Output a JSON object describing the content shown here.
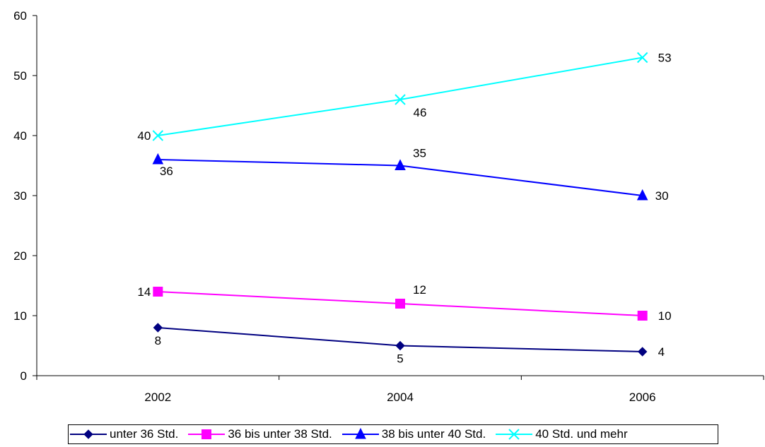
{
  "chart_data": {
    "type": "line",
    "title": "",
    "xlabel": "",
    "ylabel": "",
    "categories": [
      "2002",
      "2004",
      "2006"
    ],
    "ylim": [
      0,
      60
    ],
    "yticks": [
      "0",
      "10",
      "20",
      "30",
      "40",
      "50",
      "60"
    ],
    "grid": false,
    "legend_position": "bottom",
    "series": [
      {
        "name": "unter 36 Std.",
        "values": [
          8,
          5,
          4
        ],
        "labels": [
          "8",
          "5",
          "4"
        ],
        "color": "#000080",
        "marker": "diamond"
      },
      {
        "name": "36 bis unter 38 Std.",
        "values": [
          14,
          12,
          10
        ],
        "labels": [
          "14",
          "12",
          "10"
        ],
        "color": "#FF00FF",
        "marker": "square"
      },
      {
        "name": "38 bis unter 40 Std.",
        "values": [
          36,
          35,
          30
        ],
        "labels": [
          "36",
          "35",
          "30"
        ],
        "color": "#0000FF",
        "marker": "triangle"
      },
      {
        "name": "40 Std. und mehr",
        "values": [
          40,
          46,
          53
        ],
        "labels": [
          "40",
          "46",
          "53"
        ],
        "color": "#00FFFF",
        "marker": "x"
      }
    ]
  }
}
